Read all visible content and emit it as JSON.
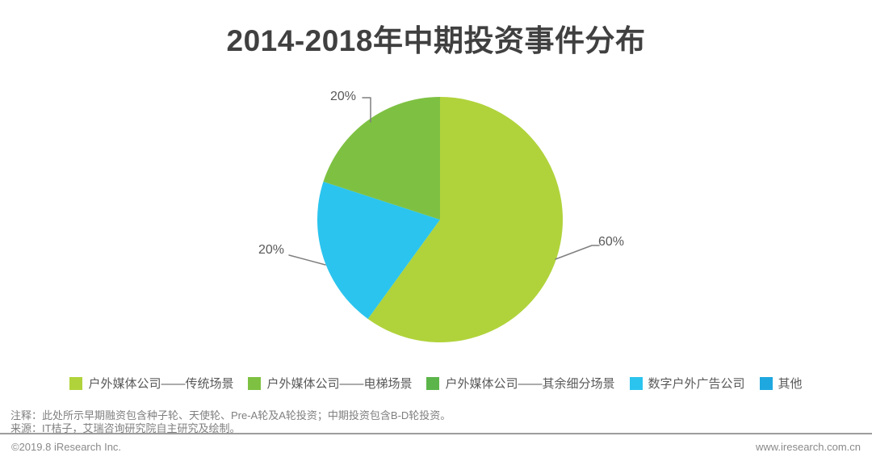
{
  "title": "2014-2018年中期投资事件分布",
  "chart_data": {
    "type": "pie",
    "title": "2014-2018年中期投资事件分布",
    "direction": "clockwise",
    "start_angle_deg": 0,
    "slices": [
      {
        "label": "户外媒体公司——传统场景",
        "value": 60,
        "display": "60%",
        "color": "#b0d33b"
      },
      {
        "label": "数字户外广告公司",
        "value": 20,
        "display": "20%",
        "color": "#2bc4ee"
      },
      {
        "label": "户外媒体公司——电梯场景",
        "value": 20,
        "display": "20%",
        "color": "#7ec142"
      }
    ],
    "legend_position": "bottom",
    "legend": [
      {
        "label": "户外媒体公司——传统场景",
        "color": "#b0d33b"
      },
      {
        "label": "户外媒体公司——电梯场景",
        "color": "#7ec142"
      },
      {
        "label": "户外媒体公司——其余细分场景",
        "color": "#5cb54a"
      },
      {
        "label": "数字户外广告公司",
        "color": "#2bc4ee"
      },
      {
        "label": "其他",
        "color": "#1fa8e0"
      }
    ]
  },
  "notes": {
    "annotation": "注释：此处所示早期融资包含种子轮、天使轮、Pre-A轮及A轮投资；中期投资包含B-D轮投资。",
    "source": "来源：IT桔子，艾瑞咨询研究院自主研究及绘制。"
  },
  "footer": {
    "copyright": "©2019.8 iResearch Inc.",
    "website": "www.iresearch.com.cn"
  }
}
